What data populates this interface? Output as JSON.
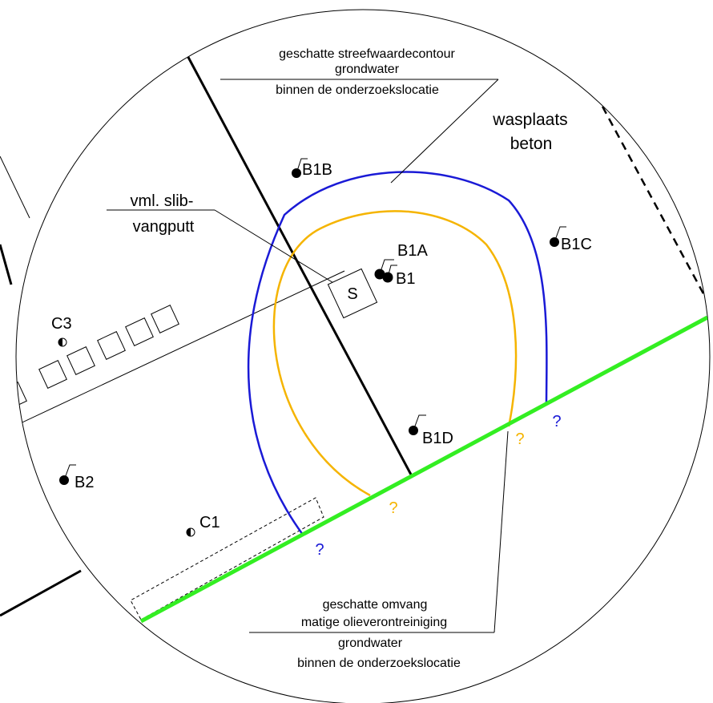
{
  "annotations": {
    "groundwater_contour": [
      "geschatte streefwaardecontour",
      "grondwater",
      "binnen de onderzoekslocatie"
    ],
    "oil_extent": [
      "geschatte omvang",
      "matige olieverontreiniging",
      "grondwater",
      "binnen de onderzoekslocatie"
    ],
    "wash_area": [
      "wasplaats",
      "beton"
    ],
    "sludge_trap": [
      "vml. slib-",
      "vangputt"
    ],
    "sludge_symbol": "S"
  },
  "boreholes": {
    "B1B": "B1B",
    "B1A": "B1A",
    "B1": "B1",
    "B1C": "B1C",
    "B1D": "B1D",
    "B2": "B2",
    "C1": "C1",
    "C3": "C3"
  },
  "uncertainty_marks": {
    "blue_left": "?",
    "blue_right": "?",
    "orange_left": "?",
    "orange_right": "?"
  },
  "colors": {
    "blue_contour": "#1a1ad6",
    "orange_contour": "#f5b400",
    "green_line": "#33ee22",
    "ink": "#000000"
  }
}
